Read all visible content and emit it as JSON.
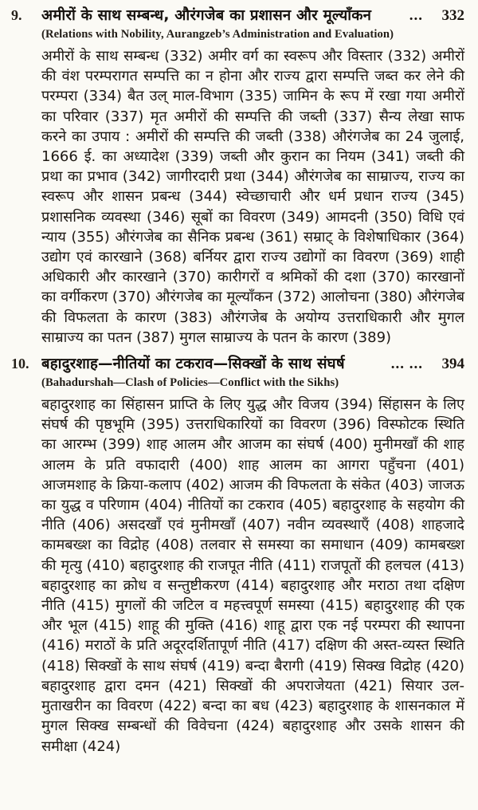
{
  "page": {
    "background": "#fbfaf5",
    "text_color": "#1b1611",
    "kind": "book-table-of-contents"
  },
  "toc_entries": [
    {
      "number": "9.",
      "title_hindi": "अमीरों के साथ सम्बन्ध, औरंगजेब का प्रशासन और मूल्याँकन",
      "dots": "...",
      "page_number": "332",
      "subtitle_english": "(Relations with Nobility, Aurangzeb’s Administration and Evaluation)",
      "topics": "अमीरों के साथ सम्बन्ध (332) अमीर वर्ग का स्वरूप और विस्तार (332) अमीरों की वंश परम्परागत सम्पत्ति का न होना और राज्य द्वारा सम्पत्ति जब्त कर लेने की परम्परा (334) बैत उल् माल-विभाग (335) जामिन के रूप में रखा गया अमीरों का परिवार (337) मृत अमीरों की सम्पत्ति की जब्ती (337) सैन्य लेखा साफ करने का उपाय : अमीरों की सम्पत्ति की जब्ती (338) औरंगजेब का 24 जुलाई, 1666 ई. का अध्यादेश (339) जब्ती और कुरान का नियम (341) जब्ती की प्रथा का प्रभाव (342) जागीरदारी प्रथा (344) औरंगजेब का साम्राज्य, राज्य का स्वरूप और शासन प्रबन्ध (344) स्वेच्छाचारी और धर्म प्रधान राज्य (345) प्रशासनिक व्यवस्था (346) सूबों का विवरण (349) आमदनी (350) विधि एवं न्याय (355) औरंगजेब का सैनिक प्रबन्ध (361) सम्राट् के विशेषाधिकार (364) उद्योग एवं कारखाने (368) बर्नियर द्वारा राज्य उद्योगों का विवरण (369) शाही अधिकारी और कारखाने (370) कारीगरों व श्रमिकों की दशा (370) कारखानों का वर्गीकरण (370) औरंगजेब का मूल्याँकन (372) आलोचना (380) औरंगजेब की विफलता के कारण (383) औरंगजेब के अयोग्य उत्तराधिकारी और मुगल साम्राज्य का पतन (387) मुगल साम्राज्य के पतन के कारण (389)"
    },
    {
      "number": "10.",
      "title_hindi": "बहादुरशाह—नीतियों का टकराव—सिक्खों के साथ संघर्ष",
      "dots": "...  ...",
      "page_number": "394",
      "subtitle_english": "(Bahadurshah—Clash of Policies—Conflict with the Sikhs)",
      "topics": "बहादुरशाह का सिंहासन प्राप्ति के लिए युद्ध और विजय (394) सिंहासन के लिए संघर्ष की पृष्ठभूमि (395) उत्तराधिकारियों का विवरण (396) विस्फोटक स्थिति का आरम्भ (399) शाह आलम और आजम का संघर्ष (400) मुनीमखाँ की शाह आलम के प्रति वफादारी (400) शाह आलम का आगरा पहुँचना (401) आजमशाह के क्रिया-कलाप (402) आजम की विफलता के संकेत (403) जाजऊ का युद्ध व परिणाम (404) नीतियों का टकराव (405) बहादुरशाह के सहयोग की नीति (406) असदखाँ एवं मुनीमखाँ (407) नवीन व्यवस्थाएँ (408) शाहजादे कामबख्श का विद्रोह (408) तलवार से समस्या का समाधान (409) कामबख्श की मृत्यु (410) बहादुरशाह की राजपूत नीति (411) राजपूतों की हलचल (413) बहादुरशाह का क्रोध व सन्तुष्टीकरण (414) बहादुरशाह और मराठा तथा दक्षिण नीति (415) मुगलों की जटिल व महत्त्वपूर्ण समस्या (415) बहादुरशाह की एक और भूल (415) शाहू की मुक्ति (416) शाहू द्वारा एक नई परम्परा की स्थापना (416) मराठों के प्रति अदूरदर्शितापूर्ण नीति (417) दक्षिण की अस्त-व्यस्त स्थिति (418) सिक्खों के साथ संघर्ष (419) बन्दा बैरागी (419) सिक्ख विद्रोह (420) बहादुरशाह द्वारा दमन (421) सिक्खों की अपराजेयता (421) सियार उल-मुताखरीन का विवरण (422) बन्दा का बध (423) बहादुरशाह के शासनकाल में मुगल सिक्ख सम्बन्धों की विवेचना (424) बहादुरशाह और उसके शासन की समीक्षा (424)"
    }
  ]
}
